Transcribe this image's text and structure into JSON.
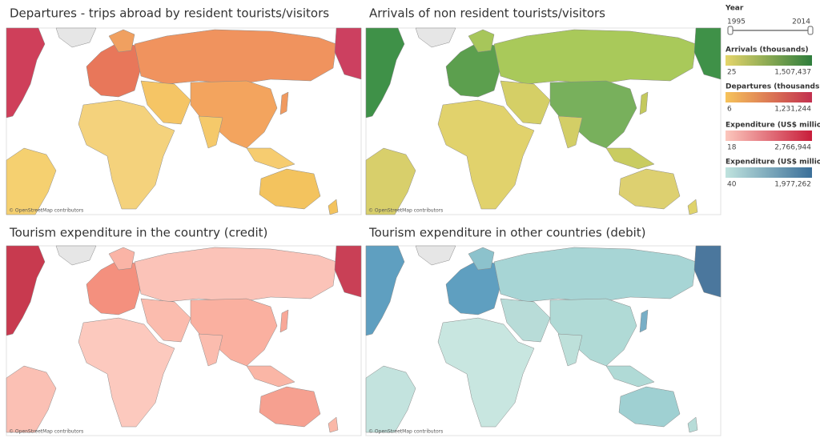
{
  "panels": [
    {
      "title": "Departures - trips abroad by resident tourists/visitors",
      "attribution": "© OpenStreetMap contributors"
    },
    {
      "title": "Arrivals of non resident tourists/visitors",
      "attribution": "© OpenStreetMap contributors"
    },
    {
      "title": "Tourism expenditure in the country (credit)",
      "attribution": "© OpenStreetMap contributors"
    },
    {
      "title": "Tourism expenditure in other countries (debit)",
      "attribution": "© OpenStreetMap contributors"
    }
  ],
  "year_filter": {
    "label": "Year",
    "start": "1995",
    "end": "2014"
  },
  "legends": [
    {
      "title": "Arrivals (thousands)",
      "min": "25",
      "max": "1,507,437",
      "colors": [
        "#e5d56b",
        "#2e7d3c"
      ]
    },
    {
      "title": "Departures (thousands)",
      "min": "6",
      "max": "1,231,244",
      "colors": [
        "#f6c35a",
        "#c2304f"
      ]
    },
    {
      "title": "Expenditure (US$ million)",
      "min": "18",
      "max": "2,766,944",
      "colors": [
        "#fcc7bd",
        "#c81d3a"
      ]
    },
    {
      "title": "Expenditure (US$ million)",
      "min": "40",
      "max": "1,977,262",
      "colors": [
        "#bfe3de",
        "#3b6f99"
      ]
    }
  ]
}
